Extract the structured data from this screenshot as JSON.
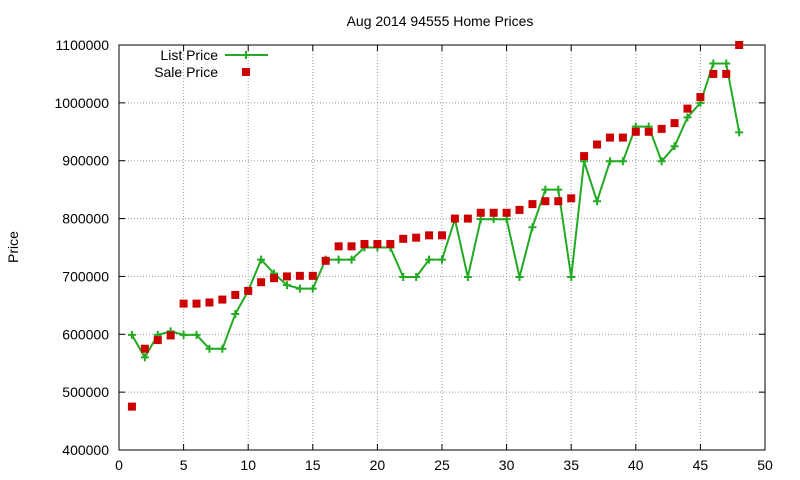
{
  "chart_data": {
    "type": "line",
    "title": "Aug 2014 94555 Home Prices",
    "xlabel": "",
    "ylabel": "Price",
    "xlim": [
      0,
      50
    ],
    "ylim": [
      400000,
      1100000
    ],
    "xticks": [
      0,
      5,
      10,
      15,
      20,
      25,
      30,
      35,
      40,
      45,
      50
    ],
    "yticks": [
      400000,
      500000,
      600000,
      700000,
      800000,
      900000,
      1000000,
      1100000
    ],
    "grid": true,
    "legend_position": "top-left",
    "series": [
      {
        "name": "List Price",
        "style": "lines+crosses",
        "color": "#22aa22",
        "x": [
          1,
          2,
          3,
          4,
          5,
          6,
          7,
          8,
          9,
          10,
          11,
          12,
          13,
          14,
          15,
          16,
          17,
          18,
          19,
          20,
          21,
          22,
          23,
          24,
          25,
          26,
          27,
          28,
          29,
          30,
          31,
          32,
          33,
          34,
          35,
          36,
          37,
          38,
          39,
          40,
          41,
          42,
          43,
          44,
          45,
          46,
          47,
          48
        ],
        "y": [
          599000,
          560000,
          599000,
          605000,
          599000,
          599000,
          575000,
          575000,
          635000,
          675000,
          729000,
          705000,
          685000,
          679000,
          679000,
          729000,
          729000,
          729000,
          750000,
          750000,
          750000,
          699000,
          699000,
          729000,
          729000,
          799000,
          699000,
          799000,
          799000,
          799000,
          699000,
          785000,
          850000,
          850000,
          699000,
          899000,
          830000,
          899000,
          899000,
          959000,
          959000,
          899000,
          925000,
          975000,
          1000000,
          1068000,
          1068000,
          949000
        ]
      },
      {
        "name": "Sale Price",
        "style": "squares",
        "color": "#cc0000",
        "x": [
          1,
          2,
          3,
          4,
          5,
          6,
          7,
          8,
          9,
          10,
          11,
          12,
          13,
          14,
          15,
          16,
          17,
          18,
          19,
          20,
          21,
          22,
          23,
          24,
          25,
          26,
          27,
          28,
          29,
          30,
          31,
          32,
          33,
          34,
          35,
          36,
          37,
          38,
          39,
          40,
          41,
          42,
          43,
          44,
          45,
          46,
          47,
          48
        ],
        "y": [
          475000,
          575000,
          590000,
          598000,
          653000,
          653000,
          655000,
          660000,
          668000,
          675000,
          690000,
          697000,
          700000,
          701000,
          701000,
          727000,
          752000,
          752000,
          756000,
          756000,
          756000,
          765000,
          767000,
          771000,
          771000,
          800000,
          800000,
          810000,
          810000,
          810000,
          815000,
          825000,
          830000,
          830000,
          835000,
          908000,
          928000,
          940000,
          940000,
          950000,
          950000,
          955000,
          965000,
          990000,
          1010000,
          1050000,
          1050000,
          1100000
        ]
      }
    ]
  }
}
